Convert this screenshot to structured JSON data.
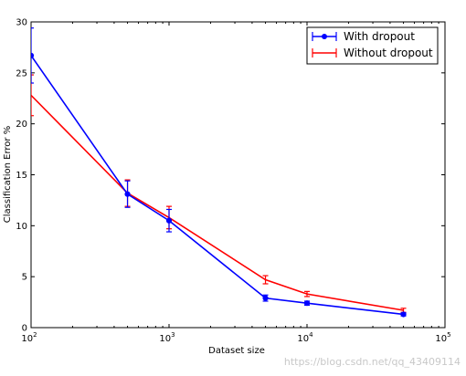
{
  "chart_data": {
    "type": "line",
    "title": "",
    "xlabel": "Dataset size",
    "ylabel": "Classification Error %",
    "xscale": "log",
    "xlim": [
      100,
      100000
    ],
    "ylim": [
      0,
      30
    ],
    "x_ticks": [
      {
        "value": 100,
        "base": "10",
        "exp": "2"
      },
      {
        "value": 1000,
        "base": "10",
        "exp": "3"
      },
      {
        "value": 10000,
        "base": "10",
        "exp": "4"
      },
      {
        "value": 100000,
        "base": "10",
        "exp": "5"
      }
    ],
    "y_ticks": [
      0,
      5,
      10,
      15,
      20,
      25,
      30
    ],
    "grid": false,
    "legend_position": "top-right",
    "series": [
      {
        "name": "With dropout",
        "color": "#0000ff",
        "marker": "circle",
        "x": [
          100,
          500,
          1000,
          5000,
          10000,
          50000
        ],
        "y": [
          26.7,
          13.1,
          10.5,
          2.9,
          2.4,
          1.3
        ],
        "err": [
          2.7,
          1.3,
          1.1,
          0.3,
          0.2,
          0.15
        ]
      },
      {
        "name": "Without dropout",
        "color": "#ff0000",
        "marker": "none",
        "x": [
          100,
          500,
          1000,
          5000,
          10000,
          50000
        ],
        "y": [
          22.8,
          13.2,
          10.8,
          4.7,
          3.3,
          1.7
        ],
        "err": [
          2.0,
          1.3,
          1.1,
          0.4,
          0.25,
          0.2
        ]
      }
    ]
  },
  "watermark": {
    "text": "https://blog.csdn.net/qq_43409114"
  }
}
